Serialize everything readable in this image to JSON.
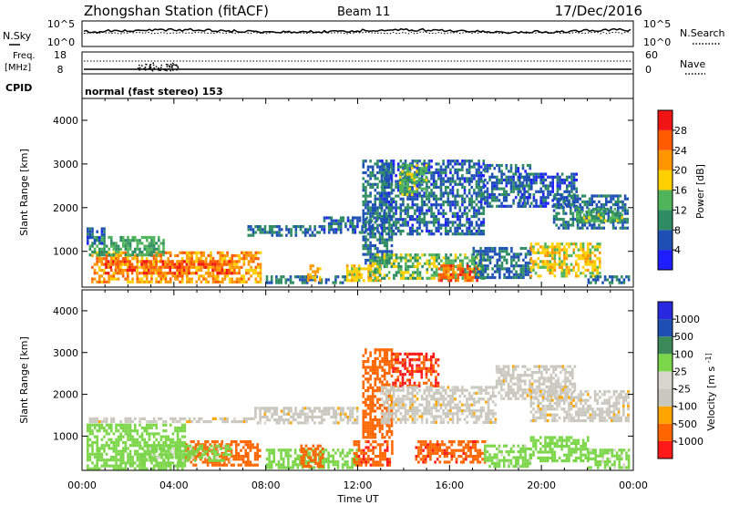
{
  "header": {
    "station": "Zhongshan Station (fitACF)",
    "beam": "Beam 11",
    "date": "17/Dec/2016"
  },
  "noise_panel": {
    "left_label": "N.Sky",
    "right_label": "N.Search",
    "left_ticks": [
      "10^5",
      "10^0"
    ],
    "right_ticks": [
      "10^5",
      "10^0"
    ]
  },
  "freq_panel": {
    "left_label_line1": "Freq.",
    "left_label_line2": "[MHz]",
    "right_label": "Nave",
    "left_ticks": [
      "18",
      "8"
    ],
    "right_ticks": [
      "60",
      "0"
    ]
  },
  "cpid": {
    "label": "CPID",
    "value": "normal (fast stereo) 153"
  },
  "x_axis": {
    "label": "Time UT",
    "ticks": [
      "00:00",
      "04:00",
      "08:00",
      "12:00",
      "16:00",
      "20:00",
      "00:00"
    ]
  },
  "colors": {
    "power": [
      "#1e1eff",
      "#1e50b4",
      "#2e8c62",
      "#50b45a",
      "#ffd000",
      "#ff9600",
      "#ff5a00",
      "#f01414"
    ],
    "velocity": [
      "#ff1a1a",
      "#ff6600",
      "#ffa500",
      "#c8c8be",
      "#d6d6cc",
      "#7cd64a",
      "#3c8a5a",
      "#1e50b4",
      "#2828e0"
    ]
  },
  "chart_data": [
    {
      "type": "heatmap",
      "title": "Power",
      "xlabel": "Time UT",
      "ylabel": "Slant Range [km]",
      "x_ticks": [
        "00:00",
        "04:00",
        "08:00",
        "12:00",
        "16:00",
        "20:00",
        "00:00"
      ],
      "y_ticks": [
        "1000",
        "2000",
        "3000",
        "4000"
      ],
      "xlim_hours": [
        0,
        24
      ],
      "ylim_km": [
        180,
        4500
      ],
      "colorbar": {
        "label": "Power [dB]",
        "ticks": [
          "4",
          "8",
          "12",
          "16",
          "20",
          "24",
          "28"
        ],
        "range": [
          0,
          30
        ]
      },
      "echo_regions": [
        {
          "t": [
            0.4,
            7.8
          ],
          "r": [
            300,
            1000
          ],
          "v": 22
        },
        {
          "t": [
            1.0,
            6.5
          ],
          "r": [
            500,
            800
          ],
          "v": 26
        },
        {
          "t": [
            0.3,
            3.5
          ],
          "r": [
            900,
            1350
          ],
          "v": 12
        },
        {
          "t": [
            0.2,
            1.0
          ],
          "r": [
            1200,
            1550
          ],
          "v": 6
        },
        {
          "t": [
            7.2,
            10.5
          ],
          "r": [
            1350,
            1600
          ],
          "v": 8
        },
        {
          "t": [
            10.5,
            13.0
          ],
          "r": [
            1400,
            1800
          ],
          "v": 6
        },
        {
          "t": [
            8.0,
            11.5
          ],
          "r": [
            250,
            450
          ],
          "v": 8
        },
        {
          "t": [
            9.8,
            10.4
          ],
          "r": [
            300,
            700
          ],
          "v": 20
        },
        {
          "t": [
            11.5,
            13.0
          ],
          "r": [
            300,
            700
          ],
          "v": 18
        },
        {
          "t": [
            12.2,
            13.5
          ],
          "r": [
            700,
            3100
          ],
          "v": 8
        },
        {
          "t": [
            13.0,
            17.5
          ],
          "r": [
            1400,
            3100
          ],
          "v": 7
        },
        {
          "t": [
            13.8,
            15.0
          ],
          "r": [
            2300,
            3000
          ],
          "v": 14
        },
        {
          "t": [
            12.5,
            17.5
          ],
          "r": [
            400,
            950
          ],
          "v": 14
        },
        {
          "t": [
            15.5,
            17.2
          ],
          "r": [
            350,
            700
          ],
          "v": 26
        },
        {
          "t": [
            17.0,
            19.5
          ],
          "r": [
            400,
            1100
          ],
          "v": 8
        },
        {
          "t": [
            17.5,
            19.5
          ],
          "r": [
            2000,
            3000
          ],
          "v": 7
        },
        {
          "t": [
            19.0,
            21.5
          ],
          "r": [
            2000,
            2800
          ],
          "v": 6
        },
        {
          "t": [
            20.5,
            23.8
          ],
          "r": [
            1500,
            2300
          ],
          "v": 8
        },
        {
          "t": [
            21.5,
            23.5
          ],
          "r": [
            1700,
            2000
          ],
          "v": 13
        },
        {
          "t": [
            19.5,
            22.5
          ],
          "r": [
            400,
            1200
          ],
          "v": 18
        },
        {
          "t": [
            22.0,
            23.8
          ],
          "r": [
            250,
            450
          ],
          "v": 8
        }
      ]
    },
    {
      "type": "heatmap",
      "title": "Velocity",
      "xlabel": "Time UT",
      "ylabel": "Slant Range [km]",
      "x_ticks": [
        "00:00",
        "04:00",
        "08:00",
        "12:00",
        "16:00",
        "20:00",
        "00:00"
      ],
      "y_ticks": [
        "1000",
        "2000",
        "3000",
        "4000"
      ],
      "xlim_hours": [
        0,
        24
      ],
      "ylim_km": [
        180,
        4500
      ],
      "colorbar": {
        "label": "Velocity [m s^-1]",
        "ticks": [
          "1000",
          "500",
          "100",
          "25",
          "-25",
          "-100",
          "-500",
          "-1000"
        ],
        "levels": [
          -1000,
          -500,
          -100,
          -25,
          25,
          100,
          500,
          1000
        ]
      },
      "echo_regions": [
        {
          "t": [
            0.2,
            4.5
          ],
          "r": [
            250,
            1300
          ],
          "v": 200
        },
        {
          "t": [
            4.5,
            7.8
          ],
          "r": [
            300,
            900
          ],
          "v": -300
        },
        {
          "t": [
            2.5,
            6.5
          ],
          "r": [
            400,
            800
          ],
          "v": 150
        },
        {
          "t": [
            0.3,
            7.5
          ],
          "r": [
            1350,
            1450
          ],
          "v": 0
        },
        {
          "t": [
            7.5,
            12.0
          ],
          "r": [
            1300,
            1700
          ],
          "v": 0
        },
        {
          "t": [
            8.0,
            12.0
          ],
          "r": [
            250,
            700
          ],
          "v": 200
        },
        {
          "t": [
            9.5,
            10.5
          ],
          "r": [
            300,
            800
          ],
          "v": -300
        },
        {
          "t": [
            11.8,
            13.5
          ],
          "r": [
            300,
            900
          ],
          "v": -400
        },
        {
          "t": [
            12.2,
            13.5
          ],
          "r": [
            1000,
            3100
          ],
          "v": -300
        },
        {
          "t": [
            13.5,
            15.5
          ],
          "r": [
            2200,
            3000
          ],
          "v": -500
        },
        {
          "t": [
            13.0,
            18.0
          ],
          "r": [
            1300,
            2200
          ],
          "v": 0
        },
        {
          "t": [
            14.5,
            17.5
          ],
          "r": [
            350,
            900
          ],
          "v": -400
        },
        {
          "t": [
            17.5,
            19.5
          ],
          "r": [
            250,
            800
          ],
          "v": 150
        },
        {
          "t": [
            18.0,
            21.5
          ],
          "r": [
            1900,
            2700
          ],
          "v": 0
        },
        {
          "t": [
            19.5,
            23.8
          ],
          "r": [
            1400,
            2100
          ],
          "v": 0
        },
        {
          "t": [
            19.5,
            22.0
          ],
          "r": [
            400,
            1000
          ],
          "v": 200
        },
        {
          "t": [
            22.0,
            23.8
          ],
          "r": [
            250,
            700
          ],
          "v": 150
        }
      ]
    }
  ]
}
